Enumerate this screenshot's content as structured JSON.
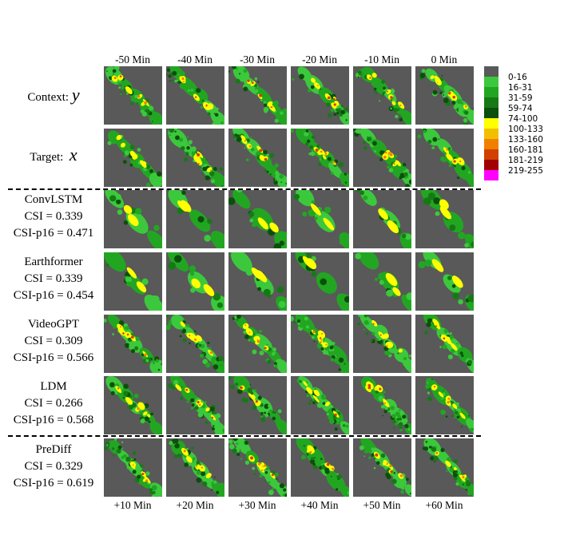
{
  "columns_top": [
    "-50 Min",
    "-40 Min",
    "-30 Min",
    "-20 Min",
    "-10 Min",
    "0 Min"
  ],
  "columns_bottom": [
    "+10 Min",
    "+20 Min",
    "+30 Min",
    "+40 Min",
    "+50 Min",
    "+60 Min"
  ],
  "rows": [
    {
      "id": "context",
      "label": "Context:",
      "symbol": "y"
    },
    {
      "id": "target",
      "label": "Target:",
      "symbol": "x"
    },
    {
      "id": "convlstm",
      "name": "ConvLSTM",
      "csi": "CSI = 0.339",
      "csi_p16": "CSI-p16 = 0.471"
    },
    {
      "id": "earthformer",
      "name": "Earthformer",
      "csi": "CSI = 0.339",
      "csi_p16": "CSI-p16 = 0.454"
    },
    {
      "id": "videogpt",
      "name": "VideoGPT",
      "csi": "CSI = 0.309",
      "csi_p16": "CSI-p16 = 0.566"
    },
    {
      "id": "ldm",
      "name": "LDM",
      "csi": "CSI = 0.266",
      "csi_p16": "CSI-p16 = 0.568"
    },
    {
      "id": "prediff",
      "name": "PreDiff",
      "csi": "CSI = 0.329",
      "csi_p16": "CSI-p16 = 0.619"
    }
  ],
  "legend": [
    {
      "label": "0-16",
      "color": "#595959"
    },
    {
      "label": "16-31",
      "color": "#3cc83c"
    },
    {
      "label": "31-59",
      "color": "#22a622"
    },
    {
      "label": "59-74",
      "color": "#157a15"
    },
    {
      "label": "74-100",
      "color": "#0b4f0b"
    },
    {
      "label": "100-133",
      "color": "#ffff00"
    },
    {
      "label": "133-160",
      "color": "#f0c000"
    },
    {
      "label": "160-181",
      "color": "#f08000"
    },
    {
      "label": "181-219",
      "color": "#d04000"
    },
    {
      "label": "219-255",
      "color": "#a00000"
    },
    {
      "label": "",
      "color": "#ff00ff"
    }
  ]
}
